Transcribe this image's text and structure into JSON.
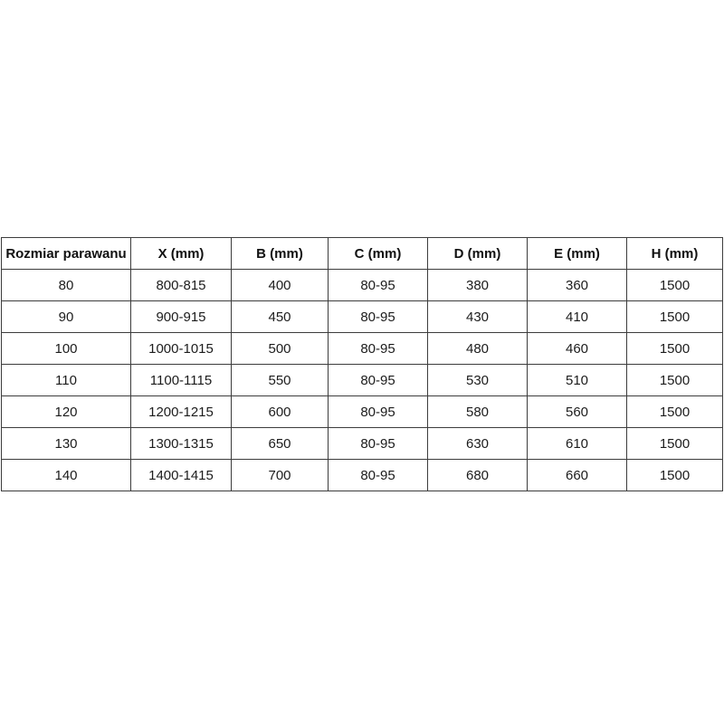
{
  "page": {
    "background": "#ffffff"
  },
  "table": {
    "colors": {
      "border": "#3c3c3c",
      "text": "#1c1c1c",
      "background": "#ffffff"
    },
    "columns": [
      "Rozmiar parawanu",
      "X (mm)",
      "B (mm)",
      "C (mm)",
      "D (mm)",
      "E (mm)",
      "H (mm)"
    ],
    "rows": [
      [
        "80",
        "800-815",
        "400",
        "80-95",
        "380",
        "360",
        "1500"
      ],
      [
        "90",
        "900-915",
        "450",
        "80-95",
        "430",
        "410",
        "1500"
      ],
      [
        "100",
        "1000-1015",
        "500",
        "80-95",
        "480",
        "460",
        "1500"
      ],
      [
        "110",
        "1100-1115",
        "550",
        "80-95",
        "530",
        "510",
        "1500"
      ],
      [
        "120",
        "1200-1215",
        "600",
        "80-95",
        "580",
        "560",
        "1500"
      ],
      [
        "130",
        "1300-1315",
        "650",
        "80-95",
        "630",
        "610",
        "1500"
      ],
      [
        "140",
        "1400-1415",
        "700",
        "80-95",
        "680",
        "660",
        "1500"
      ]
    ]
  },
  "chart_data": {
    "type": "table",
    "title": "",
    "columns": [
      "Rozmiar parawanu",
      "X (mm)",
      "B (mm)",
      "C (mm)",
      "D (mm)",
      "E (mm)",
      "H (mm)"
    ],
    "rows": [
      [
        "80",
        "800-815",
        "400",
        "80-95",
        "380",
        "360",
        "1500"
      ],
      [
        "90",
        "900-915",
        "450",
        "80-95",
        "430",
        "410",
        "1500"
      ],
      [
        "100",
        "1000-1015",
        "500",
        "80-95",
        "480",
        "460",
        "1500"
      ],
      [
        "110",
        "1100-1115",
        "550",
        "80-95",
        "530",
        "510",
        "1500"
      ],
      [
        "120",
        "1200-1215",
        "600",
        "80-95",
        "580",
        "560",
        "1500"
      ],
      [
        "130",
        "1300-1315",
        "650",
        "80-95",
        "630",
        "610",
        "1500"
      ],
      [
        "140",
        "1400-1415",
        "700",
        "80-95",
        "680",
        "660",
        "1500"
      ]
    ]
  }
}
